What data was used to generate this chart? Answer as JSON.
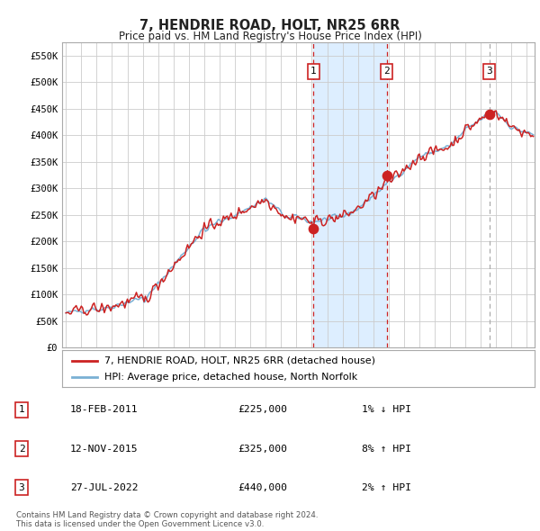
{
  "title": "7, HENDRIE ROAD, HOLT, NR25 6RR",
  "subtitle": "Price paid vs. HM Land Registry's House Price Index (HPI)",
  "hpi_color": "#7ab0d4",
  "price_color": "#cc2222",
  "sale_dot_color": "#cc2222",
  "bg_color": "#ffffff",
  "shade_color": "#ddeeff",
  "grid_color": "#cccccc",
  "vline_color_sale": "#cc2222",
  "vline_color_3": "#aaaaaa",
  "ylim": [
    0,
    575000
  ],
  "yticks": [
    0,
    50000,
    100000,
    150000,
    200000,
    250000,
    300000,
    350000,
    400000,
    450000,
    500000,
    550000
  ],
  "ytick_labels": [
    "£0",
    "£50K",
    "£100K",
    "£150K",
    "£200K",
    "£250K",
    "£300K",
    "£350K",
    "£400K",
    "£450K",
    "£500K",
    "£550K"
  ],
  "xlim_start": 1994.75,
  "xlim_end": 2025.5,
  "sale1_x": 2011.12,
  "sale1_y": 225000,
  "sale2_x": 2015.87,
  "sale2_y": 325000,
  "sale3_x": 2022.57,
  "sale3_y": 440000,
  "legend_label_price": "7, HENDRIE ROAD, HOLT, NR25 6RR (detached house)",
  "legend_label_hpi": "HPI: Average price, detached house, North Norfolk",
  "table_entries": [
    {
      "num": "1",
      "date": "18-FEB-2011",
      "price": "£225,000",
      "hpi": "1% ↓ HPI"
    },
    {
      "num": "2",
      "date": "12-NOV-2015",
      "price": "£325,000",
      "hpi": "8% ↑ HPI"
    },
    {
      "num": "3",
      "date": "27-JUL-2022",
      "price": "£440,000",
      "hpi": "2% ↑ HPI"
    }
  ],
  "footnote1": "Contains HM Land Registry data © Crown copyright and database right 2024.",
  "footnote2": "This data is licensed under the Open Government Licence v3.0."
}
